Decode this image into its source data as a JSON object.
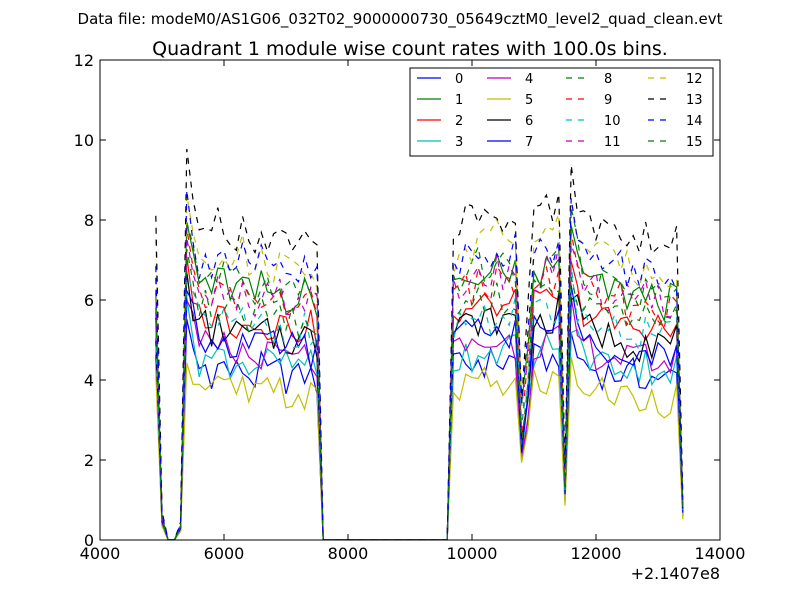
{
  "chart_data": {
    "type": "line",
    "suptitle": "Data file: modeM0/AS1G06_032T02_9000000730_05649cztM0_level2_quad_clean.evt",
    "title": "Quadrant 1 module wise count rates with 100.0s bins.",
    "xlabel": "",
    "ylabel": "",
    "x_offset_label": "+2.1407e8",
    "xlim": [
      4000,
      14000
    ],
    "ylim": [
      0,
      12
    ],
    "xticks": [
      4000,
      6000,
      8000,
      10000,
      12000,
      14000
    ],
    "xtick_labels": [
      "4000",
      "6000",
      "8000",
      "10000",
      "12000",
      "14000"
    ],
    "yticks": [
      0,
      2,
      4,
      6,
      8,
      10,
      12
    ],
    "ytick_labels": [
      "0",
      "2",
      "4",
      "6",
      "8",
      "10",
      "12"
    ],
    "grid": false,
    "legend_position": "top-right",
    "x": [
      4900,
      5000,
      5100,
      5200,
      5300,
      5400,
      5500,
      5600,
      5700,
      5800,
      5900,
      6000,
      6100,
      6200,
      6300,
      6400,
      6500,
      6600,
      6700,
      6800,
      6900,
      7000,
      7100,
      7200,
      7300,
      7400,
      7500,
      7600,
      7700,
      7800,
      7900,
      8000,
      8100,
      8200,
      8300,
      8400,
      8500,
      8600,
      8700,
      8800,
      8900,
      9000,
      9100,
      9200,
      9300,
      9400,
      9500,
      9600,
      9700,
      9800,
      9900,
      10000,
      10100,
      10200,
      10300,
      10400,
      10500,
      10600,
      10700,
      10800,
      10900,
      11000,
      11100,
      11200,
      11300,
      11400,
      11500,
      11600,
      11700,
      11800,
      11900,
      12000,
      12100,
      12200,
      12300,
      12400,
      12500,
      12600,
      12700,
      12800,
      12900,
      13000,
      13100,
      13200,
      13300,
      13400
    ],
    "series_profile": [
      0.9,
      0.08,
      0,
      0,
      0.05,
      1.08,
      0.98,
      0.87,
      0.89,
      0.86,
      0.88,
      0.89,
      0.86,
      0.85,
      0.88,
      0.84,
      0.83,
      0.87,
      0.85,
      0.84,
      0.86,
      0.83,
      0.84,
      0.82,
      0.85,
      0.83,
      0.81,
      0,
      0,
      0,
      0,
      0,
      0,
      0,
      0,
      0,
      0,
      0,
      0,
      0,
      0,
      0,
      0,
      0,
      0,
      0,
      0,
      0,
      0.86,
      0.88,
      0.9,
      0.89,
      0.92,
      0.91,
      0.9,
      0.93,
      0.9,
      0.92,
      0.91,
      0.42,
      0.61,
      0.92,
      0.9,
      0.93,
      0.91,
      0.96,
      0.2,
      1.05,
      0.95,
      0.9,
      0.88,
      0.87,
      0.86,
      0.85,
      0.84,
      0.86,
      0.83,
      0.84,
      0.82,
      0.85,
      0.83,
      0.84,
      0.81,
      0.82,
      0.83,
      0.12
    ],
    "series": [
      {
        "name": "0",
        "color": "#0000ff",
        "dash": "solid",
        "level": 4.9
      },
      {
        "name": "1",
        "color": "#008000",
        "dash": "solid",
        "level": 7.3
      },
      {
        "name": "2",
        "color": "#ff0000",
        "dash": "solid",
        "level": 6.4
      },
      {
        "name": "3",
        "color": "#00bfbf",
        "dash": "solid",
        "level": 5.2
      },
      {
        "name": "4",
        "color": "#bf00bf",
        "dash": "solid",
        "level": 5.4
      },
      {
        "name": "5",
        "color": "#bfbf00",
        "dash": "solid",
        "level": 4.3
      },
      {
        "name": "6",
        "color": "#000000",
        "dash": "solid",
        "level": 6.0
      },
      {
        "name": "7",
        "color": "#0000ff",
        "dash": "solid",
        "level": 5.7
      },
      {
        "name": "8",
        "color": "#008000",
        "dash": "dashed",
        "level": 7.5
      },
      {
        "name": "9",
        "color": "#ff0000",
        "dash": "dashed",
        "level": 7.0
      },
      {
        "name": "10",
        "color": "#00bfbf",
        "dash": "dashed",
        "level": 6.2
      },
      {
        "name": "11",
        "color": "#bf00bf",
        "dash": "dashed",
        "level": 7.2
      },
      {
        "name": "12",
        "color": "#bfbf00",
        "dash": "dashed",
        "level": 8.2
      },
      {
        "name": "13",
        "color": "#000000",
        "dash": "dashed",
        "level": 9.0
      },
      {
        "name": "14",
        "color": "#0000ff",
        "dash": "dashed",
        "level": 8.0
      },
      {
        "name": "15",
        "color": "#008000",
        "dash": "dashed",
        "level": 6.6
      }
    ]
  }
}
